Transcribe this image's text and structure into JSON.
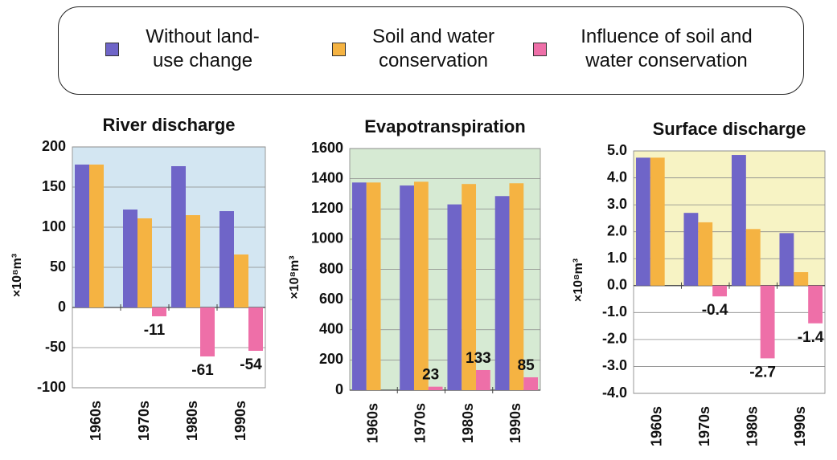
{
  "chart_data": [
    {
      "type": "bar",
      "title": "River discharge",
      "y_label": "×10⁸m³",
      "categories": [
        "1960s",
        "1970s",
        "1980s",
        "1990s"
      ],
      "series": [
        {
          "name": "Without land-use change",
          "color": "#6f65c8",
          "values": [
            178,
            122,
            176,
            120
          ]
        },
        {
          "name": "Soil and water conservation",
          "color": "#f5b342",
          "values": [
            178,
            111,
            115,
            66
          ]
        },
        {
          "name": "Influence of soil and water conservation",
          "color": "#ee6fa8",
          "values": [
            null,
            -11,
            -61,
            -54
          ],
          "data_labels": true
        }
      ],
      "ylim": [
        -100,
        200
      ],
      "yticks": [
        -100,
        -50,
        0,
        50,
        100,
        150,
        200
      ],
      "grid": true,
      "plot_color": "#d3e6f2"
    },
    {
      "type": "bar",
      "title": "Evapotranspiration",
      "y_label": "×10⁸m³",
      "categories": [
        "1960s",
        "1970s",
        "1980s",
        "1990s"
      ],
      "series": [
        {
          "name": "Without land-use change",
          "color": "#6f65c8",
          "values": [
            1375,
            1355,
            1230,
            1285
          ]
        },
        {
          "name": "Soil and water conservation",
          "color": "#f5b342",
          "values": [
            1375,
            1380,
            1365,
            1370
          ]
        },
        {
          "name": "Influence of soil and water conservation",
          "color": "#ee6fa8",
          "values": [
            null,
            23,
            133,
            85
          ],
          "data_labels": true
        }
      ],
      "ylim": [
        0,
        1600
      ],
      "yticks": [
        0,
        200,
        400,
        600,
        800,
        1000,
        1200,
        1400,
        1600
      ],
      "grid": true,
      "plot_color": "#d6ead3"
    },
    {
      "type": "bar",
      "title": "Surface discharge",
      "y_label": "×10⁸m³",
      "categories": [
        "1960s",
        "1970s",
        "1980s",
        "1990s"
      ],
      "series": [
        {
          "name": "Without land-use change",
          "color": "#6f65c8",
          "values": [
            4.75,
            2.7,
            4.85,
            1.95
          ]
        },
        {
          "name": "Soil and water conservation",
          "color": "#f5b342",
          "values": [
            4.75,
            2.35,
            2.1,
            0.5
          ]
        },
        {
          "name": "Influence of soil and water conservation",
          "color": "#ee6fa8",
          "values": [
            null,
            -0.4,
            -2.7,
            -1.4
          ],
          "data_labels": true
        }
      ],
      "ylim": [
        -4,
        5
      ],
      "yticks": [
        {
          "value": -4,
          "label": "-4.0"
        },
        {
          "value": -3,
          "label": "-3.0"
        },
        {
          "value": -2,
          "label": "-2.0"
        },
        {
          "value": -1,
          "label": "-1.0"
        },
        {
          "value": 0,
          "label": "0.0"
        },
        {
          "value": 1,
          "label": "1.0"
        },
        {
          "value": 2,
          "label": "2.0"
        },
        {
          "value": 3,
          "label": "3.0"
        },
        {
          "value": 4,
          "label": "4.0"
        },
        {
          "value": 5,
          "label": "5.0"
        }
      ],
      "grid": true,
      "plot_color": "#f7f3c4"
    }
  ]
}
